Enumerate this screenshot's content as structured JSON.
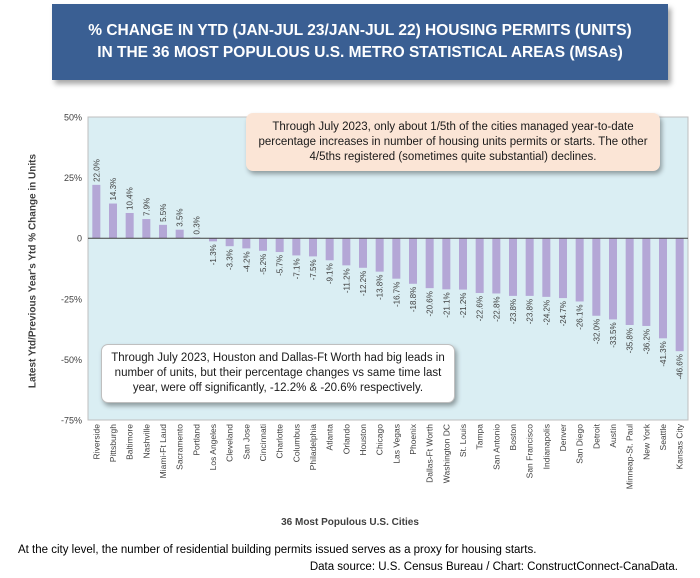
{
  "title": {
    "line1": "% CHANGE IN YTD (JAN-JUL 23/JAN-JUL 22) HOUSING PERMITS (UNITS)",
    "line2": "IN THE 36 MOST POPULOUS U.S. METRO STATISTICAL AREAS (MSAs)"
  },
  "annotations": {
    "top": "Through July 2023, only about 1/5th of the cities managed year-to-date percentage increases in number of housing units permits or starts. The other 4/5ths registered (sometimes quite substantial) declines.",
    "bottom": "Through July 2023, Houston and Dallas-Ft Worth had big leads in number of units, but their percentage changes vs same time last year, were off significantly, -12.2% & -20.6% respectively."
  },
  "footnote": "At the city level, the number of residential building permits issued serves as a proxy for housing starts.",
  "source": "Data source: U.S. Census Bureau / Chart: ConstructConnect-CanaData.",
  "chart_data": {
    "type": "bar",
    "title": "% CHANGE IN YTD (JAN-JUL 23/JAN-JUL 22) HOUSING PERMITS (UNITS) IN THE 36 MOST POPULOUS U.S. METRO STATISTICAL AREAS (MSAs)",
    "xlabel": "36 Most Populous U.S. Cities",
    "ylabel": "Latest Ytd/Previous Year's Ytd % Change in Units",
    "ylim": [
      -75,
      50
    ],
    "yticks": [
      50,
      25,
      0,
      -25,
      -50,
      -75
    ],
    "ytick_labels": [
      "50%",
      "25%",
      "0",
      "-25%",
      "-50%",
      "-75%"
    ],
    "categories": [
      "Riverside",
      "Pittsburgh",
      "Baltimore",
      "Nashville",
      "Miami-Ft Laud",
      "Sacramento",
      "Portland",
      "Los Angeles",
      "Cleveland",
      "San Jose",
      "Cincinnati",
      "Charlotte",
      "Columbus",
      "Philadelphia",
      "Atlanta",
      "Orlando",
      "Houston",
      "Chicago",
      "Las Vegas",
      "Phoenix",
      "Dallas-Ft Worth",
      "Washington DC",
      "St. Louis",
      "Tampa",
      "San Antonio",
      "Boston",
      "San Francisco",
      "Indianapolis",
      "Denver",
      "San Diego",
      "Detroit",
      "Austin",
      "Minneap-St. Paul",
      "New York",
      "Seattle",
      "Kansas City"
    ],
    "values": [
      22.0,
      14.3,
      10.4,
      7.9,
      5.5,
      3.5,
      0.3,
      -1.3,
      -3.3,
      -4.2,
      -5.2,
      -5.7,
      -7.1,
      -7.5,
      -9.1,
      -11.2,
      -12.2,
      -13.8,
      -16.7,
      -18.8,
      -20.6,
      -21.1,
      -21.2,
      -22.6,
      -22.8,
      -23.8,
      -23.8,
      -24.2,
      -24.7,
      -26.1,
      -32.0,
      -33.5,
      -35.8,
      -36.2,
      -41.3,
      -46.6
    ],
    "data_labels": [
      "22.0%",
      "14.3%",
      "10.4%",
      "7.9%",
      "5.5%",
      "3.5%",
      "0.3%",
      "-1.3%",
      "-3.3%",
      "-4.2%",
      "-5.2%",
      "-5.7%",
      "-7.1%",
      "-7.5%",
      "-9.1%",
      "-11.2%",
      "-12.2%",
      "-13.8%",
      "-16.7%",
      "-18.8%",
      "-20.6%",
      "-21.1%",
      "-21.2%",
      "-22.6%",
      "-22.8%",
      "-23.8%",
      "-23.8%",
      "-24.2%",
      "-24.7%",
      "-26.1%",
      "-32.0%",
      "-33.5%",
      "-35.8%",
      "-36.2%",
      "-41.3%",
      "-46.6%"
    ],
    "bar_color": "#b4a7d6",
    "plot_background": "#daeef3"
  }
}
